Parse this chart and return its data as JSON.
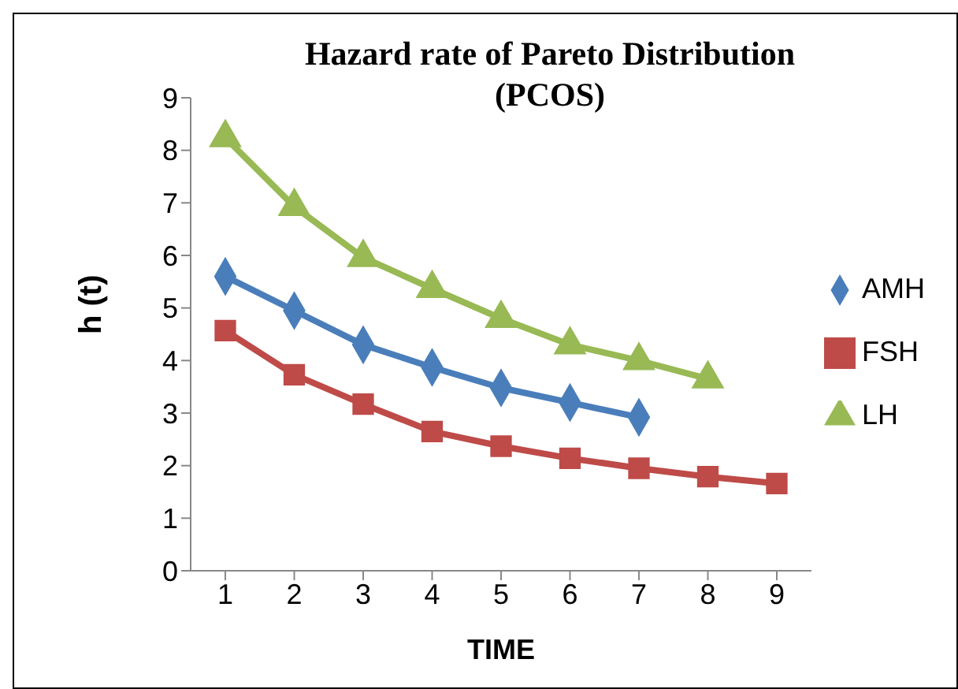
{
  "chart_data": {
    "type": "line",
    "title": "Hazard rate of Pareto Distribution (PCOS)",
    "xlabel": "TIME",
    "ylabel": "h (t)",
    "categories": [
      "1",
      "2",
      "3",
      "4",
      "5",
      "6",
      "7",
      "8",
      "9"
    ],
    "series": [
      {
        "name": "AMH",
        "color": "#4a7ebb",
        "marker": "diamond",
        "values": [
          5.6,
          4.95,
          4.3,
          3.87,
          3.48,
          3.2,
          2.92,
          null,
          null
        ]
      },
      {
        "name": "FSH",
        "color": "#be4b48",
        "marker": "square",
        "values": [
          4.57,
          3.73,
          3.17,
          2.65,
          2.37,
          2.14,
          1.95,
          1.79,
          1.66
        ]
      },
      {
        "name": "LH",
        "color": "#98b954",
        "marker": "triangle",
        "values": [
          8.24,
          6.93,
          5.96,
          5.37,
          4.8,
          4.3,
          4.0,
          3.65,
          null
        ]
      }
    ],
    "ylim": [
      0,
      9
    ],
    "yticks": [
      0,
      1,
      2,
      3,
      4,
      5,
      6,
      7,
      8,
      9
    ],
    "grid": false,
    "legend": "right",
    "line_style": "solid"
  }
}
